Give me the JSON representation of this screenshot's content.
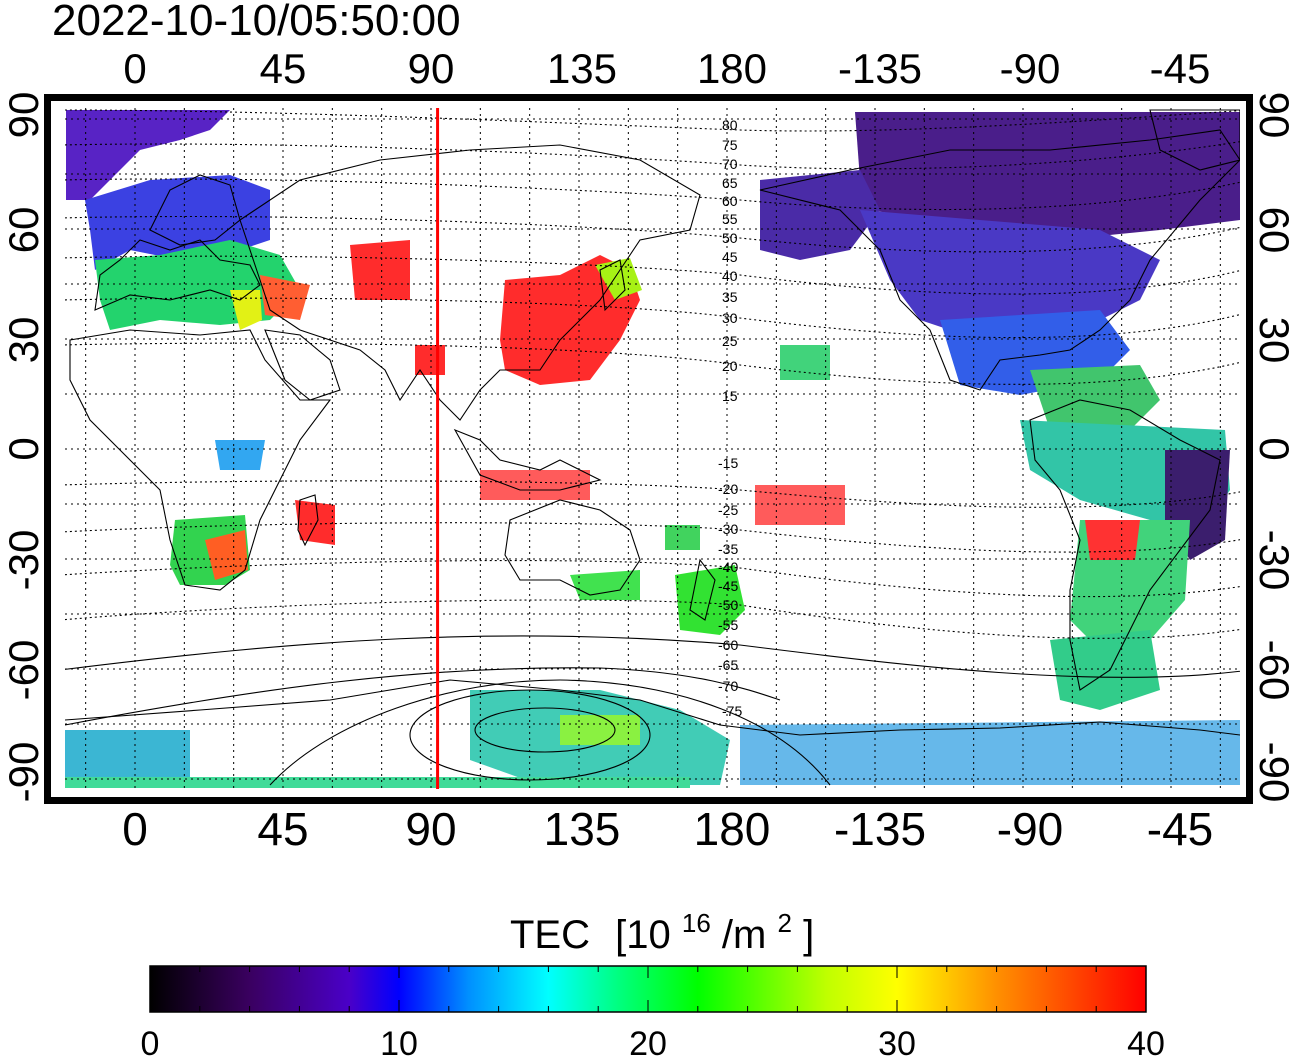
{
  "timestamp": "2022-10-10/05:50:00",
  "top_lon_labels": [
    "0",
    "45",
    "90",
    "135",
    "180",
    "-135",
    "-90",
    "-45"
  ],
  "bottom_lon_labels": [
    "0",
    "45",
    "90",
    "135",
    "180",
    "-135",
    "-90",
    "-45"
  ],
  "left_lat_labels": [
    "90",
    "60",
    "30",
    "0",
    "-30",
    "-60",
    "-90"
  ],
  "right_lat_labels": [
    "90",
    "60",
    "30",
    "0",
    "-30",
    "-60",
    "-90"
  ],
  "contour_labels_north": [
    "80",
    "75",
    "70",
    "65",
    "60",
    "55",
    "50",
    "45",
    "40",
    "35",
    "30",
    "25",
    "20",
    "15"
  ],
  "contour_labels_south": [
    "-15",
    "-20",
    "-25",
    "-30",
    "-35",
    "-40",
    "-45",
    "-50",
    "-55",
    "-60",
    "-65",
    "-70",
    "-75"
  ],
  "colorbar": {
    "title": "TEC",
    "unit_base": "[10",
    "unit_exp": "16",
    "unit_mid": "/m",
    "unit_exp2": "2",
    "unit_end": "]",
    "tick_labels": [
      "0",
      "10",
      "20",
      "30",
      "40"
    ],
    "min": 0,
    "max": 40,
    "colors": [
      "#000000",
      "#3a0060",
      "#4a00c8",
      "#0000ff",
      "#0090ff",
      "#00ffff",
      "#00ff80",
      "#00ff00",
      "#c0ff00",
      "#ffff00",
      "#ff9000",
      "#ff0000"
    ]
  },
  "marker_longitude": 92,
  "marker_color": "#ff0000"
}
